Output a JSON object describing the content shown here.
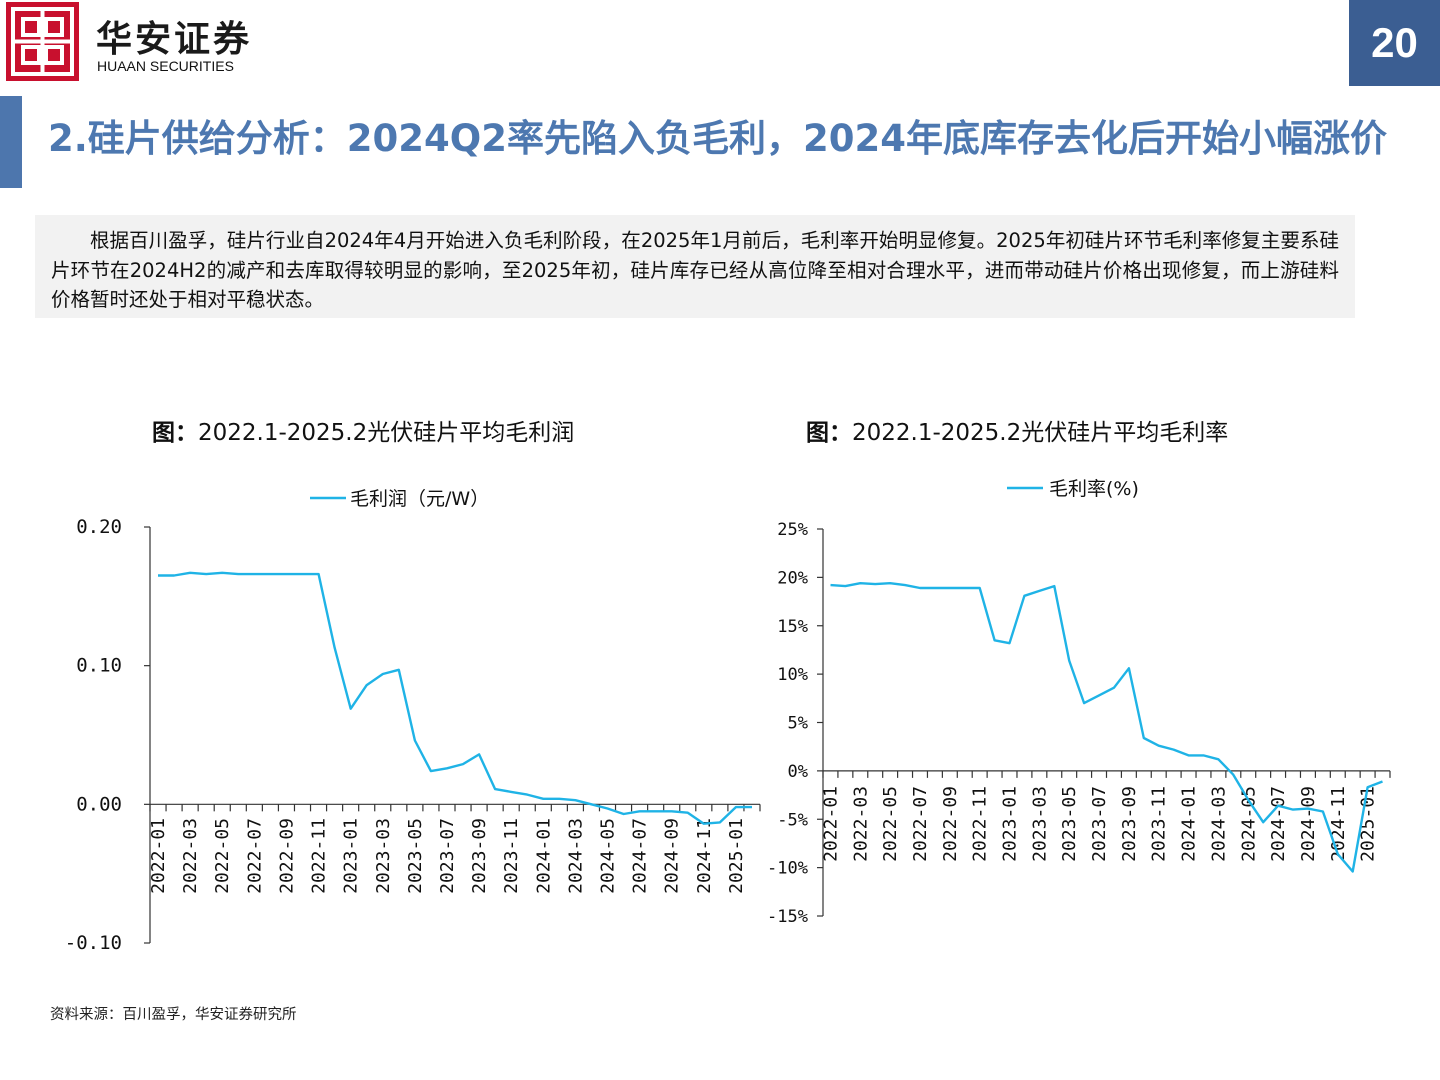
{
  "header": {
    "brand_cn": "华安证券",
    "brand_en": "HUAAN SECURITIES",
    "page_number": "20",
    "colors": {
      "brand_red": "#c8102e",
      "accent_blue": "#4d78b0",
      "page_tab": "#3b5e92",
      "line": "#1fb3e6"
    }
  },
  "title": "2.硅片供给分析：2024Q2率先陷入负毛利，2024年底库存去化后开始小幅涨价",
  "summary": "根据百川盈孚，硅片行业自2024年4月开始进入负毛利阶段，在2025年1月前后，毛利率开始明显修复。2025年初硅片环节毛利率修复主要系硅片环节在2024H2的减产和去库取得较明显的影响，至2025年初，硅片库存已经从高位降至相对合理水平，进而带动硅片价格出现修复，而上游硅料价格暂时还处于相对平稳状态。",
  "figures": {
    "left": {
      "prefix": "图：",
      "title": "2022.1-2025.2光伏硅片平均毛利润"
    },
    "right": {
      "prefix": "图：",
      "title": "2022.1-2025.2光伏硅片平均毛利率"
    }
  },
  "source": "资料来源：百川盈孚，华安证券研究所",
  "chart_data": [
    {
      "type": "line",
      "title": "2022.1-2025.2光伏硅片平均毛利润",
      "legend": "毛利润（元/W）",
      "legend_position": "top",
      "ylim": [
        -0.1,
        0.2
      ],
      "yticks": [
        "-0.10",
        "0.00",
        "0.10",
        "0.20"
      ],
      "ytick_values": [
        -0.1,
        0.0,
        0.1,
        0.2
      ],
      "x": [
        "2022-01",
        "2022-02",
        "2022-03",
        "2022-04",
        "2022-05",
        "2022-06",
        "2022-07",
        "2022-08",
        "2022-09",
        "2022-10",
        "2022-11",
        "2022-12",
        "2023-01",
        "2023-02",
        "2023-03",
        "2023-04",
        "2023-05",
        "2023-06",
        "2023-07",
        "2023-08",
        "2023-09",
        "2023-10",
        "2023-11",
        "2023-12",
        "2024-01",
        "2024-02",
        "2024-03",
        "2024-04",
        "2024-05",
        "2024-06",
        "2024-07",
        "2024-08",
        "2024-09",
        "2024-10",
        "2024-11",
        "2024-12",
        "2025-01",
        "2025-02"
      ],
      "xtick_labels": [
        "2022-01",
        "2022-03",
        "2022-05",
        "2022-07",
        "2022-09",
        "2022-11",
        "2023-01",
        "2023-03",
        "2023-05",
        "2023-07",
        "2023-09",
        "2023-11",
        "2024-01",
        "2024-03",
        "2024-05",
        "2024-07",
        "2024-09",
        "2024-11",
        "2025-01"
      ],
      "series": [
        {
          "name": "毛利润（元/W）",
          "values": [
            0.165,
            0.165,
            0.167,
            0.166,
            0.167,
            0.166,
            0.166,
            0.166,
            0.166,
            0.166,
            0.166,
            0.113,
            0.069,
            0.086,
            0.094,
            0.097,
            0.046,
            0.024,
            0.026,
            0.029,
            0.036,
            0.011,
            0.009,
            0.007,
            0.004,
            0.004,
            0.003,
            0.0,
            -0.003,
            -0.007,
            -0.005,
            -0.005,
            -0.005,
            -0.006,
            -0.014,
            -0.013,
            -0.002,
            -0.002
          ]
        }
      ]
    },
    {
      "type": "line",
      "title": "2022.1-2025.2光伏硅片平均毛利率",
      "legend": "毛利率(%)",
      "legend_position": "top",
      "ylim": [
        -15,
        25
      ],
      "yticks": [
        "-15%",
        "-10%",
        "-5%",
        "0%",
        "5%",
        "10%",
        "15%",
        "20%",
        "25%"
      ],
      "ytick_values": [
        -15,
        -10,
        -5,
        0,
        5,
        10,
        15,
        20,
        25
      ],
      "x": [
        "2022-01",
        "2022-02",
        "2022-03",
        "2022-04",
        "2022-05",
        "2022-06",
        "2022-07",
        "2022-08",
        "2022-09",
        "2022-10",
        "2022-11",
        "2022-12",
        "2023-01",
        "2023-02",
        "2023-03",
        "2023-04",
        "2023-05",
        "2023-06",
        "2023-07",
        "2023-08",
        "2023-09",
        "2023-10",
        "2023-11",
        "2023-12",
        "2024-01",
        "2024-02",
        "2024-03",
        "2024-04",
        "2024-05",
        "2024-06",
        "2024-07",
        "2024-08",
        "2024-09",
        "2024-10",
        "2024-11",
        "2024-12",
        "2025-01",
        "2025-02"
      ],
      "xtick_labels": [
        "2022-01",
        "2022-03",
        "2022-05",
        "2022-07",
        "2022-09",
        "2022-11",
        "2023-01",
        "2023-03",
        "2023-05",
        "2023-07",
        "2023-09",
        "2023-11",
        "2024-01",
        "2024-03",
        "2024-05",
        "2024-07",
        "2024-09",
        "2024-11",
        "2025-01"
      ],
      "series": [
        {
          "name": "毛利率(%)",
          "values": [
            19.2,
            19.1,
            19.4,
            19.3,
            19.4,
            19.2,
            18.9,
            18.9,
            18.9,
            18.9,
            18.9,
            13.5,
            13.2,
            18.1,
            18.6,
            19.1,
            11.4,
            7.0,
            7.8,
            8.6,
            10.6,
            3.4,
            2.6,
            2.2,
            1.6,
            1.6,
            1.2,
            -0.4,
            -3.0,
            -5.3,
            -3.6,
            -4.0,
            -3.9,
            -4.2,
            -8.6,
            -10.4,
            -1.7,
            -1.1
          ]
        }
      ]
    }
  ]
}
